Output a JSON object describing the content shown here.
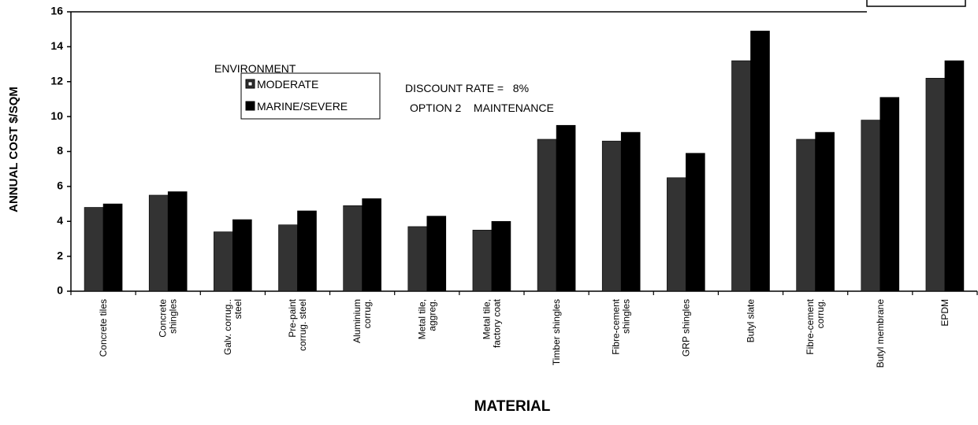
{
  "chart_data": {
    "type": "bar",
    "xlabel": "MATERIAL",
    "ylabel": "ANNUAL COST $/SQM",
    "legend_title": "ENVIRONMENT",
    "annotations": [
      "DISCOUNT RATE =   8%",
      "OPTION 2    MAINTENANCE"
    ],
    "categories": [
      "Concrete tiles",
      "Concrete\nshingles",
      "Galv. corrug..\nsteel",
      "Pre-paint\ncorrug. steel",
      "Aluminium\ncorrug.",
      "Metal tile,\naggreg.",
      "Metal tile,\nfactory coat",
      "Timber shingles",
      "Fibre-cement\nshingles",
      "GRP shingles",
      "Butyl slate",
      "Fibre-cement\ncorrug.",
      "Butyl membrane",
      "EPDM"
    ],
    "series": [
      {
        "name": "MODERATE",
        "color": "#333333",
        "values": [
          4.8,
          5.5,
          3.4,
          3.8,
          4.9,
          3.7,
          3.5,
          8.7,
          8.6,
          6.5,
          13.2,
          8.7,
          9.8,
          12.2
        ]
      },
      {
        "name": "MARINE/SEVERE",
        "color": "#000000",
        "values": [
          5.0,
          5.7,
          4.1,
          4.6,
          5.3,
          4.3,
          4.0,
          9.5,
          9.1,
          7.9,
          14.9,
          9.1,
          11.1,
          13.2
        ]
      }
    ],
    "ylim": [
      0,
      16
    ],
    "yticks": [
      0,
      2,
      4,
      6,
      8,
      10,
      12,
      14,
      16
    ],
    "grid": false
  }
}
